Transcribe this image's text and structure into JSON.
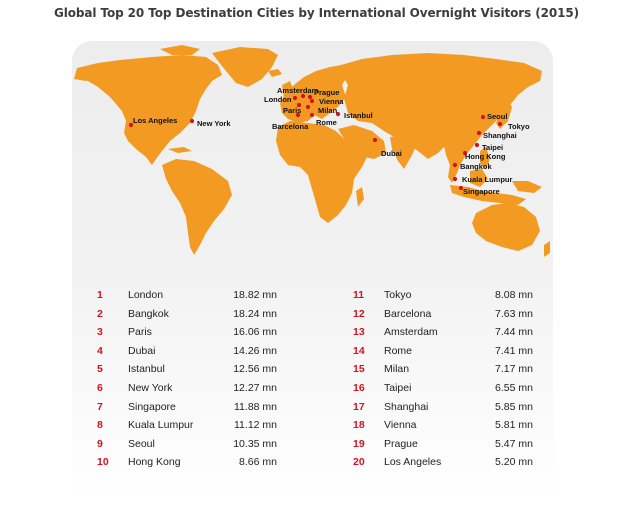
{
  "title": "Global Top 20 Top Destination Cities by International Overnight Visitors (2015)",
  "colors": {
    "land": "#f39a23",
    "marker": "#d5121f",
    "rank_number": "#d5121f",
    "panel": "#efefef"
  },
  "map_labels": [
    {
      "name": "Los Angeles"
    },
    {
      "name": "New York"
    },
    {
      "name": "Amsterdam"
    },
    {
      "name": "Prague"
    },
    {
      "name": "London"
    },
    {
      "name": "Vienna"
    },
    {
      "name": "Paris"
    },
    {
      "name": "Milan"
    },
    {
      "name": "Barcelona"
    },
    {
      "name": "Rome"
    },
    {
      "name": "Istanbul"
    },
    {
      "name": "Dubai"
    },
    {
      "name": "Seoul"
    },
    {
      "name": "Tokyo"
    },
    {
      "name": "Shanghai"
    },
    {
      "name": "Taipei"
    },
    {
      "name": "Hong Kong"
    },
    {
      "name": "Bangkok"
    },
    {
      "name": "Kuala Lumpur"
    },
    {
      "name": "Singapore"
    }
  ],
  "rankings": [
    {
      "rank": "1",
      "city": "London",
      "value": "18.82 mn"
    },
    {
      "rank": "2",
      "city": "Bangkok",
      "value": "18.24 mn"
    },
    {
      "rank": "3",
      "city": "Paris",
      "value": "16.06 mn"
    },
    {
      "rank": "4",
      "city": "Dubai",
      "value": "14.26 mn"
    },
    {
      "rank": "5",
      "city": "Istanbul",
      "value": "12.56 mn"
    },
    {
      "rank": "6",
      "city": "New York",
      "value": "12.27 mn"
    },
    {
      "rank": "7",
      "city": "Singapore",
      "value": "11.88 mn"
    },
    {
      "rank": "8",
      "city": "Kuala Lumpur",
      "value": "11.12 mn"
    },
    {
      "rank": "9",
      "city": "Seoul",
      "value": "10.35 mn"
    },
    {
      "rank": "10",
      "city": "Hong Kong",
      "value": "8.66 mn"
    },
    {
      "rank": "11",
      "city": "Tokyo",
      "value": "8.08 mn"
    },
    {
      "rank": "12",
      "city": "Barcelona",
      "value": "7.63 mn"
    },
    {
      "rank": "13",
      "city": "Amsterdam",
      "value": "7.44 mn"
    },
    {
      "rank": "14",
      "city": "Rome",
      "value": "7.41 mn"
    },
    {
      "rank": "15",
      "city": "Milan",
      "value": "7.17 mn"
    },
    {
      "rank": "16",
      "city": "Taipei",
      "value": "6.55 mn"
    },
    {
      "rank": "17",
      "city": "Shanghai",
      "value": "5.85 mn"
    },
    {
      "rank": "18",
      "city": "Vienna",
      "value": "5.81 mn"
    },
    {
      "rank": "19",
      "city": "Prague",
      "value": "5.47 mn"
    },
    {
      "rank": "20",
      "city": "Los Angeles",
      "value": "5.20 mn"
    }
  ]
}
